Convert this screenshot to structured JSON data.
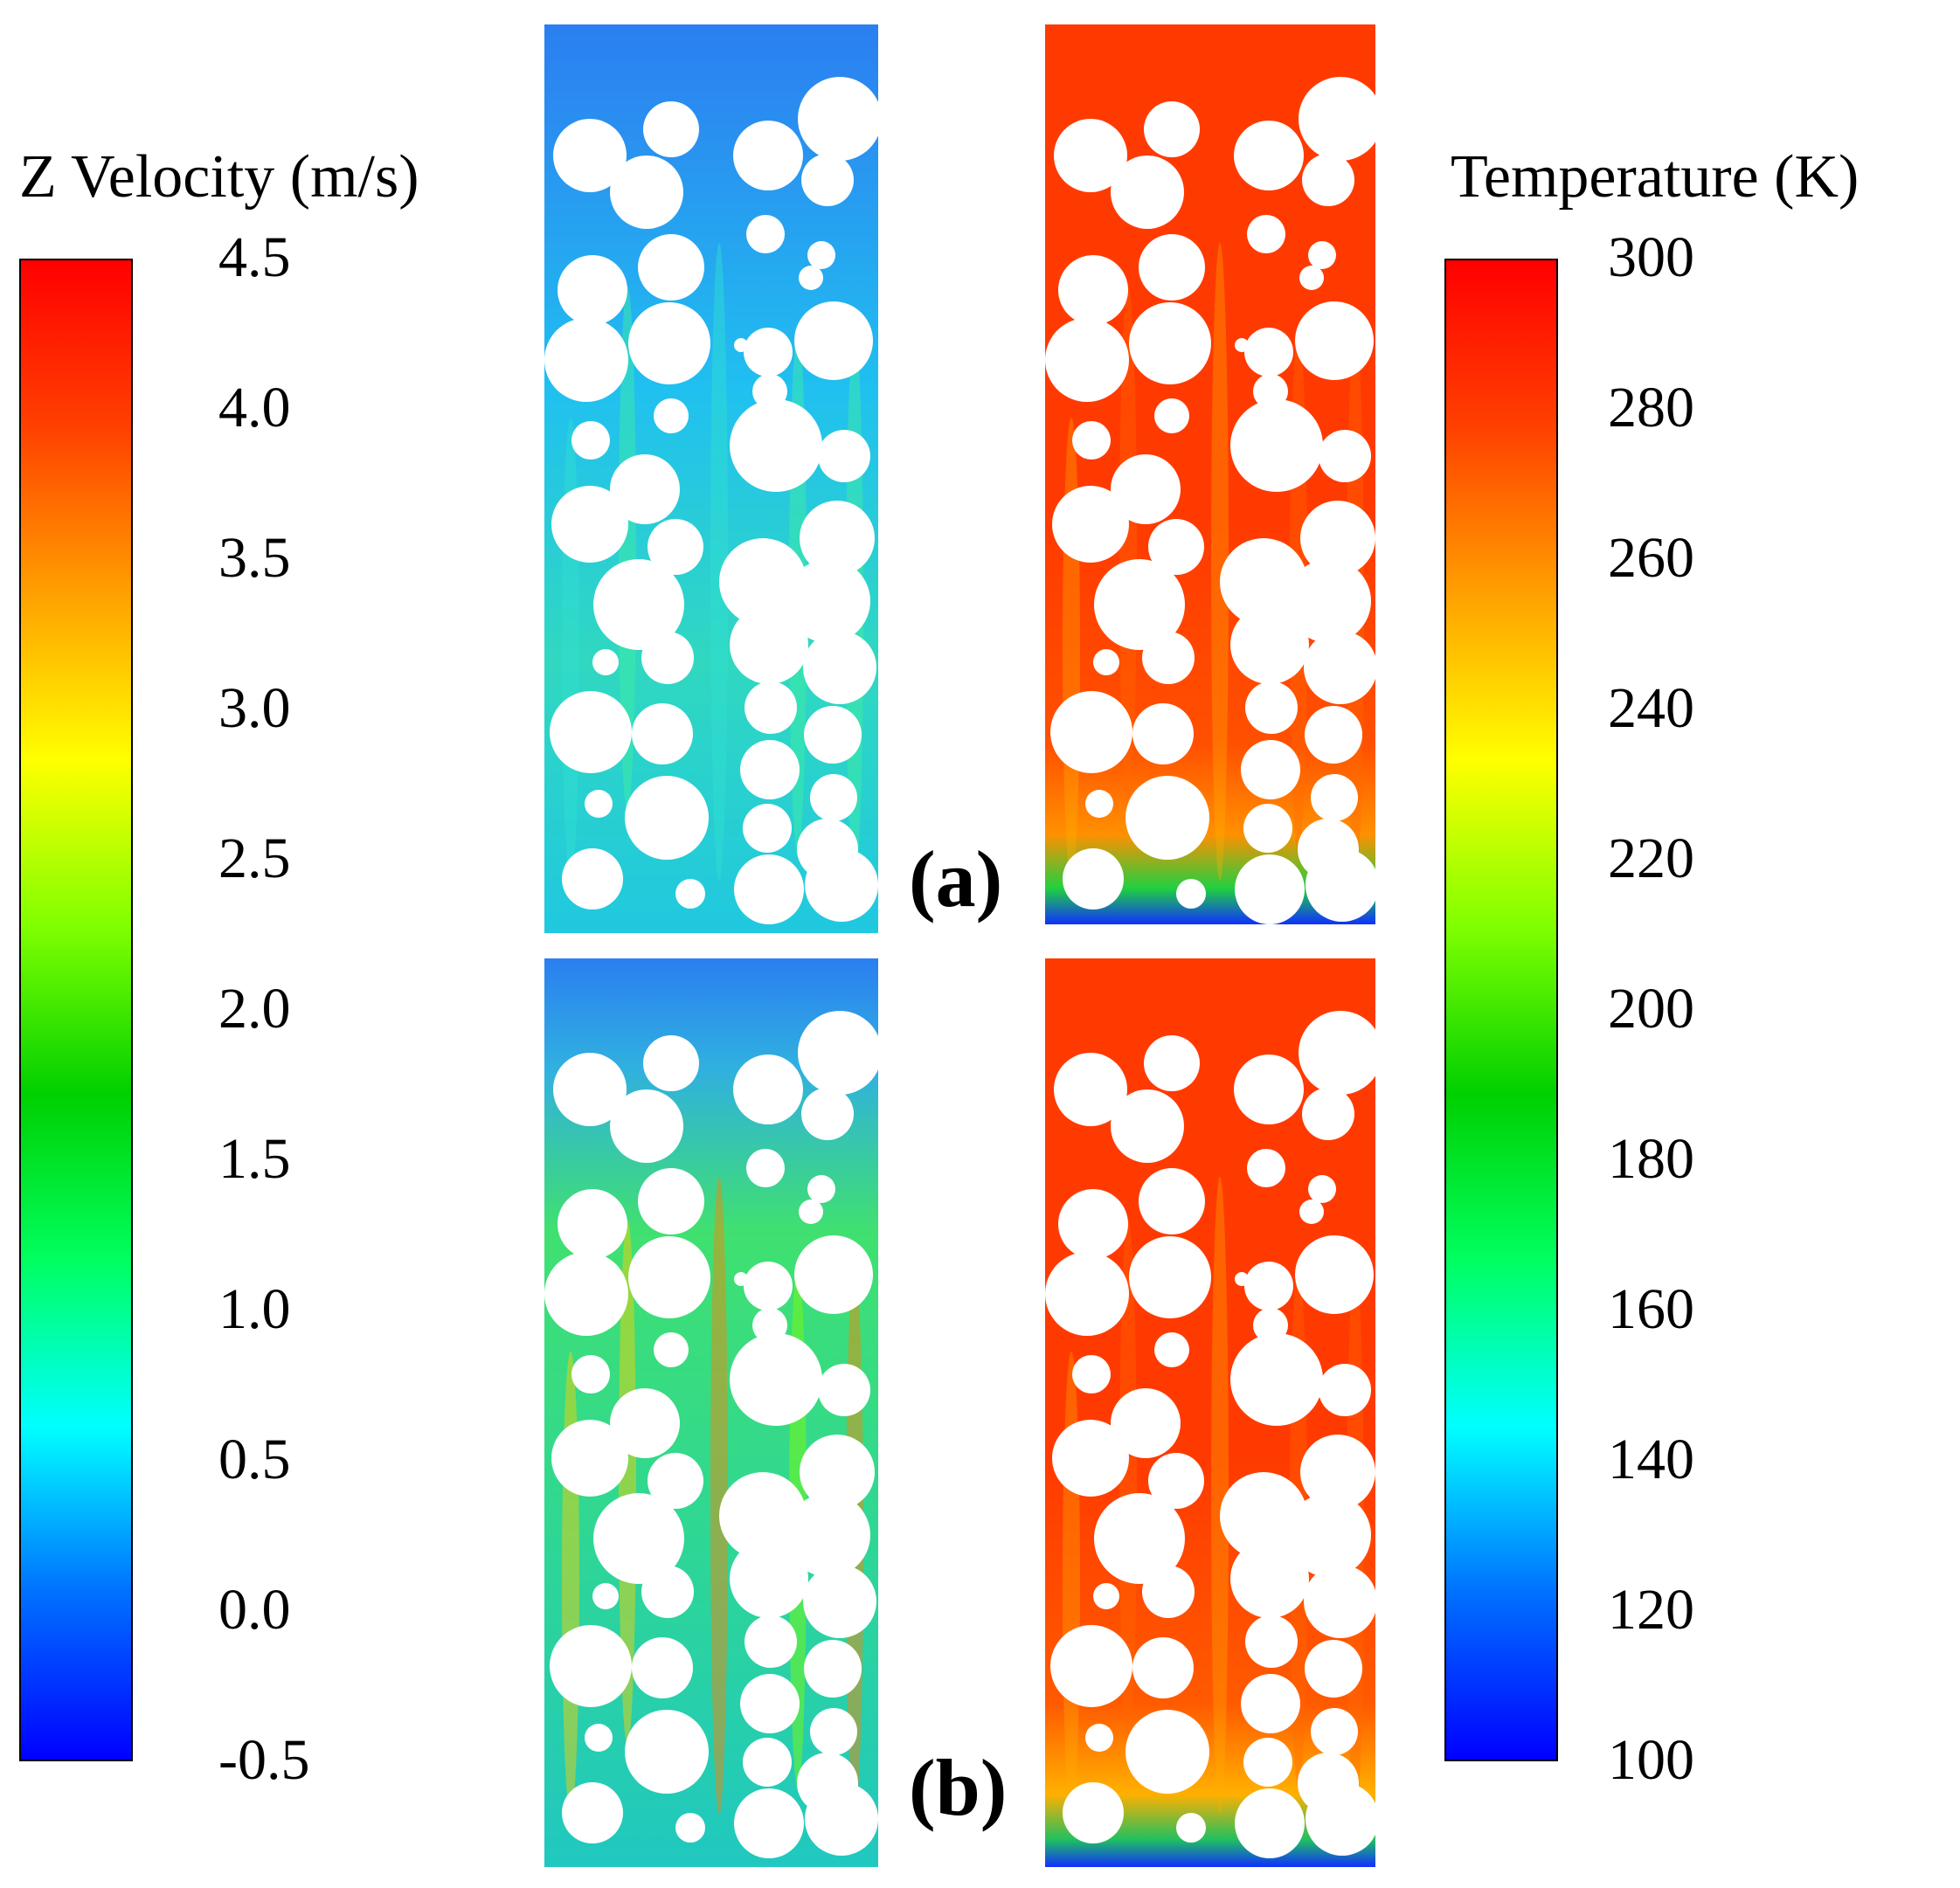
{
  "velocity_legend": {
    "title": "Z Velocity (m/s)",
    "ticks": [
      "4.5",
      "4.0",
      "3.5",
      "3.0",
      "2.5",
      "2.0",
      "1.5",
      "1.0",
      "0.5",
      "0.0",
      "-0.5"
    ],
    "min": -0.5,
    "max": 4.5
  },
  "temperature_legend": {
    "title": "Temperature (K)",
    "ticks": [
      "300",
      "280",
      "260",
      "240",
      "220",
      "200",
      "180",
      "160",
      "140",
      "120",
      "100"
    ],
    "min": 100,
    "max": 300
  },
  "colormap": [
    "#0000ff",
    "#0070ff",
    "#00ffff",
    "#00ff60",
    "#00d000",
    "#80ff00",
    "#ffff00",
    "#ffa000",
    "#ff4000",
    "#ff0000"
  ],
  "panel_labels": {
    "a": "(a)",
    "b": "(b)"
  },
  "colors": {
    "velocity_background": "#1a88f0",
    "temperature_background": "#ff3a00",
    "particle": "#ffffff"
  }
}
